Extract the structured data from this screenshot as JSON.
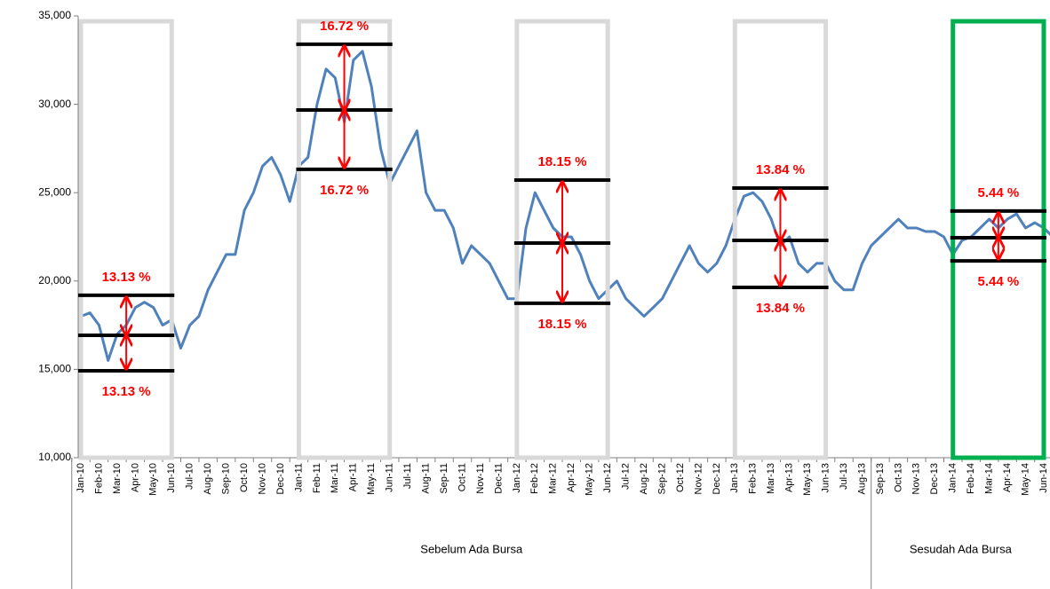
{
  "chart_data": {
    "type": "line",
    "categories": [
      "Jan-10",
      null,
      "Feb-10",
      null,
      "Mar-10",
      null,
      "Apr-10",
      null,
      "May-10",
      null,
      "Jun-10",
      null,
      "Jul-10",
      null,
      "Aug-10",
      null,
      "Sep-10",
      null,
      "Oct-10",
      null,
      "Nov-10",
      null,
      "Dec-10",
      null,
      "Jan-11",
      null,
      "Feb-11",
      null,
      "Mar-11",
      null,
      "Apr-11",
      null,
      "May-11",
      null,
      "Jun-11",
      null,
      "Jul-11",
      null,
      "Aug-11",
      null,
      "Sep-11",
      null,
      "Oct-11",
      null,
      "Nov-11",
      null,
      "Dec-11",
      null,
      "Jan-12",
      null,
      "Feb-12",
      null,
      "Mar-12",
      null,
      "Apr-12",
      null,
      "May-12",
      null,
      "Jun-12",
      null,
      "Jul-12",
      null,
      "Aug-12",
      null,
      "Sep-12",
      null,
      "Oct-12",
      null,
      "Nov-12",
      null,
      "Dec-12",
      null,
      "Jan-13",
      null,
      "Feb-13",
      null,
      "Mar-13",
      null,
      "Apr-13",
      null,
      "May-13",
      null,
      "Jun-13",
      null,
      "Jul-13",
      null,
      "Aug-13",
      null,
      "Sep-13",
      null,
      "Oct-13",
      null,
      "Nov-13",
      null,
      "Dec-13",
      null,
      "Jan-14",
      null,
      "Feb-14",
      null,
      "Mar-14",
      null,
      "Apr-14",
      null,
      "May-14",
      null,
      "Jun-14",
      null
    ],
    "series": [
      {
        "color": "#4f81bd",
        "values": [
          18000,
          18200,
          17500,
          15500,
          17000,
          17500,
          18500,
          18800,
          18500,
          17500,
          17800,
          16200,
          17500,
          18000,
          19500,
          20500,
          21500,
          21500,
          24000,
          25000,
          26500,
          27000,
          26000,
          24500,
          26500,
          27000,
          30000,
          32000,
          31500,
          29000,
          32500,
          33000,
          31000,
          27500,
          25500,
          26500,
          27500,
          28500,
          25000,
          24000,
          24000,
          23000,
          21000,
          22000,
          21500,
          21000,
          20000,
          19000,
          19000,
          23000,
          25000,
          24000,
          23000,
          22500,
          22500,
          21500,
          20000,
          19000,
          19500,
          20000,
          19000,
          18500,
          18000,
          18500,
          19000,
          20000,
          21000,
          22000,
          21000,
          20500,
          21000,
          22000,
          23500,
          24800,
          25000,
          24500,
          23500,
          22000,
          22500,
          21000,
          20500,
          21000,
          21000,
          20000,
          19500,
          19500,
          21000,
          22000,
          22500,
          23000,
          23500,
          23000,
          23000,
          22800,
          22800,
          22500,
          21500,
          22300,
          22500,
          23000,
          23500,
          23000,
          23500,
          23800,
          23000,
          23300,
          23000,
          22500
        ]
      }
    ],
    "ylim": [
      10000,
      35000
    ],
    "yticks": [
      {
        "value": 10000,
        "label": "10,000"
      },
      {
        "value": 15000,
        "label": "15,000"
      },
      {
        "value": 20000,
        "label": "20,000"
      },
      {
        "value": 25000,
        "label": "25,000"
      },
      {
        "value": 30000,
        "label": "30,000"
      },
      {
        "value": 35000,
        "label": "35,000"
      }
    ],
    "bands": [
      {
        "from": "Jan-10",
        "to": "Jun-10",
        "upper": 19190,
        "mid": 16930,
        "lower": 14920,
        "labels": [
          "13.13 %",
          "13.13 %"
        ],
        "color": "#d9d9d9"
      },
      {
        "from": "Jan-11",
        "to": "Jun-11",
        "upper": 33400,
        "mid": 29680,
        "lower": 26320,
        "labels": [
          "16.72 %",
          "16.72 %"
        ],
        "color": "#d9d9d9"
      },
      {
        "from": "Jan-12",
        "to": "Jun-12",
        "upper": 25710,
        "mid": 22150,
        "lower": 18740,
        "labels": [
          "18.15 %",
          "18.15 %"
        ],
        "color": "#d9d9d9"
      },
      {
        "from": "Jan-13",
        "to": "Jun-13",
        "upper": 25260,
        "mid": 22300,
        "lower": 19640,
        "labels": [
          "13.84 %",
          "13.84 %"
        ],
        "color": "#d9d9d9"
      },
      {
        "from": "Jan-14",
        "to": "Jun-14",
        "upper": 23960,
        "mid": 22450,
        "lower": 21140,
        "labels": [
          "5.44 %",
          "5.44 %"
        ],
        "color": "#00b050"
      }
    ],
    "groups": [
      {
        "label": "Sebelum Ada Bursa",
        "from": "Jan-10",
        "to": "Aug-13"
      },
      {
        "label": "Sesudah Ada Bursa",
        "from": "Sep-13",
        "to": "Jun-14"
      }
    ]
  }
}
